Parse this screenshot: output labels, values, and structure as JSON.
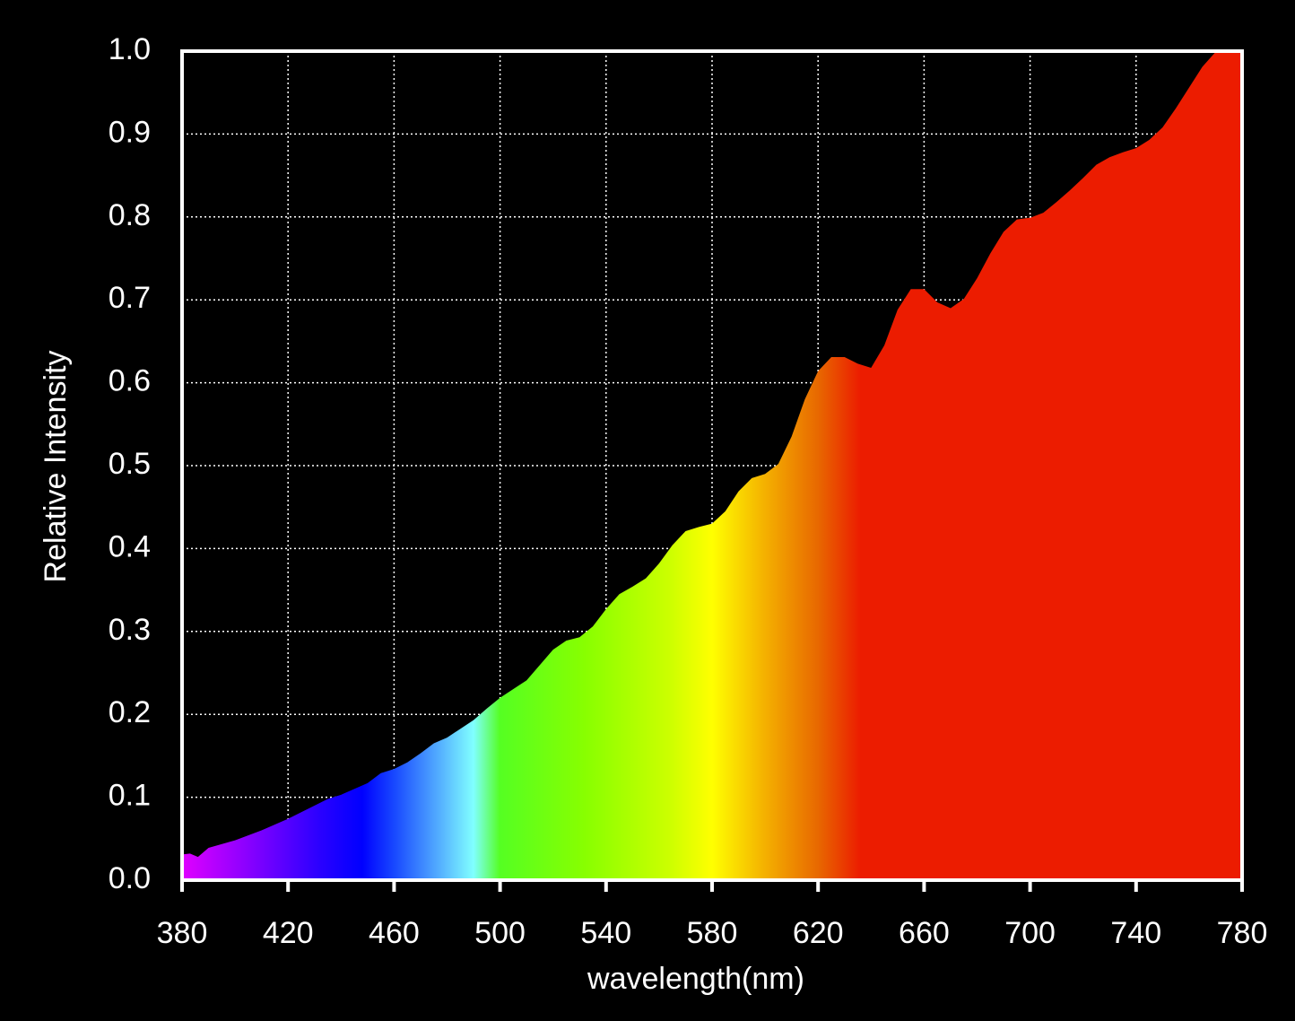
{
  "chart_data": {
    "type": "area",
    "xlabel": "wavelength(nm)",
    "ylabel": "Relative Intensity",
    "x": [
      380,
      383,
      386,
      390,
      400,
      410,
      420,
      430,
      435,
      440,
      450,
      455,
      460,
      465,
      470,
      475,
      480,
      490,
      495,
      500,
      510,
      520,
      525,
      530,
      535,
      540,
      545,
      550,
      555,
      560,
      565,
      570,
      575,
      580,
      585,
      590,
      595,
      600,
      605,
      610,
      615,
      620,
      625,
      630,
      635,
      640,
      645,
      650,
      655,
      660,
      665,
      670,
      675,
      680,
      685,
      690,
      695,
      700,
      705,
      710,
      715,
      720,
      725,
      730,
      735,
      740,
      745,
      750,
      755,
      760,
      765,
      770,
      775,
      780
    ],
    "values": [
      0.031,
      0.032,
      0.028,
      0.039,
      0.048,
      0.06,
      0.074,
      0.09,
      0.098,
      0.103,
      0.117,
      0.129,
      0.134,
      0.142,
      0.153,
      0.165,
      0.172,
      0.193,
      0.207,
      0.22,
      0.241,
      0.278,
      0.289,
      0.293,
      0.306,
      0.327,
      0.345,
      0.354,
      0.364,
      0.382,
      0.404,
      0.421,
      0.426,
      0.43,
      0.445,
      0.469,
      0.485,
      0.49,
      0.502,
      0.535,
      0.58,
      0.614,
      0.631,
      0.631,
      0.623,
      0.618,
      0.645,
      0.688,
      0.713,
      0.713,
      0.697,
      0.69,
      0.701,
      0.726,
      0.756,
      0.782,
      0.797,
      0.799,
      0.805,
      0.818,
      0.832,
      0.847,
      0.863,
      0.872,
      0.878,
      0.883,
      0.893,
      0.908,
      0.931,
      0.956,
      0.981,
      0.999,
      1.0,
      1.0
    ],
    "xlim": [
      380,
      780
    ],
    "ylim": [
      0,
      1
    ],
    "xticks": [
      380,
      420,
      460,
      500,
      540,
      580,
      620,
      660,
      700,
      740,
      780
    ],
    "yticks": [
      {
        "value": 0,
        "label": "0.0"
      },
      0.1,
      0.2,
      0.3,
      0.4,
      0.5,
      0.6,
      0.7,
      0.8,
      0.9,
      {
        "value": 1,
        "label": "1.0"
      }
    ],
    "grid": true
  }
}
